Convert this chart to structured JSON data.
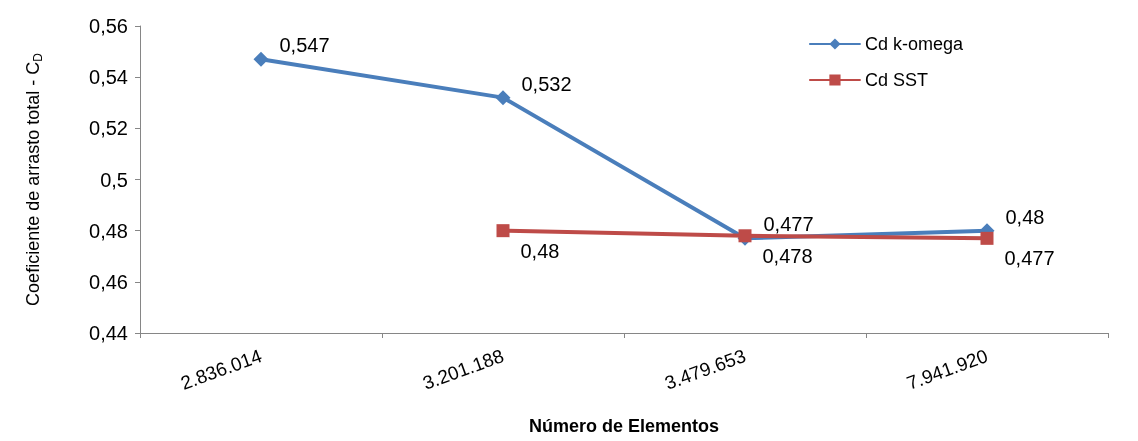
{
  "chart_data": {
    "type": "line",
    "xlabel": "Número de Elementos",
    "ylabel": "Coeficiente de arrasto total - C$_{D}$",
    "categories": [
      "2.836.014",
      "3.201.188",
      "3.479.653",
      "7.941.920"
    ],
    "series": [
      {
        "name": "Cd k-omega",
        "color": "#4a7ebb",
        "marker": "diamond",
        "values": [
          0.547,
          0.532,
          0.477,
          0.48
        ],
        "value_labels": [
          "0,547",
          "0,532",
          "0,477",
          "0,48"
        ]
      },
      {
        "name": "Cd SST",
        "color": "#be4b48",
        "marker": "square",
        "values": [
          null,
          0.48,
          0.478,
          0.477
        ],
        "value_labels": [
          null,
          "0,48",
          "0,478",
          "0,477"
        ]
      }
    ],
    "ylim": [
      0.44,
      0.56
    ],
    "yticks": [
      {
        "value": 0.44,
        "label": "0,44"
      },
      {
        "value": 0.46,
        "label": "0,46"
      },
      {
        "value": 0.48,
        "label": "0,48"
      },
      {
        "value": 0.5,
        "label": "0,5"
      },
      {
        "value": 0.52,
        "label": "0,52"
      },
      {
        "value": 0.54,
        "label": "0,54"
      },
      {
        "value": 0.56,
        "label": "0,56"
      }
    ],
    "grid": false,
    "legend": "top right",
    "line_style": "solid"
  }
}
